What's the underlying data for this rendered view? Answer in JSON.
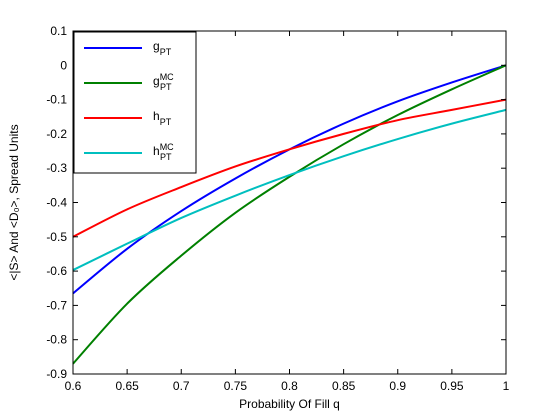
{
  "chart_data": {
    "type": "line",
    "title": "",
    "xlabel": "Probability Of Fill q",
    "ylabel": "<|S> And <D₀>, Spread Units",
    "xlim": [
      0.6,
      1.0
    ],
    "ylim": [
      -0.9,
      0.1
    ],
    "xticks": [
      0.6,
      0.65,
      0.7,
      0.75,
      0.8,
      0.85,
      0.9,
      0.95,
      1.0
    ],
    "xtick_labels": [
      "0.6",
      "0.65",
      "0.7",
      "0.75",
      "0.8",
      "0.85",
      "0.9",
      "0.95",
      "1"
    ],
    "yticks": [
      0.1,
      0,
      -0.1,
      -0.2,
      -0.3,
      -0.4,
      -0.5,
      -0.6,
      -0.7,
      -0.8,
      -0.9
    ],
    "ytick_labels": [
      "0.1",
      "0",
      "-0.1",
      "-0.2",
      "-0.3",
      "-0.4",
      "-0.5",
      "-0.6",
      "-0.7",
      "-0.8",
      "-0.9"
    ],
    "grid": false,
    "legend_position": "top-left",
    "x": [
      0.6,
      0.65,
      0.7,
      0.75,
      0.8,
      0.85,
      0.9,
      0.95,
      1.0
    ],
    "series": [
      {
        "name": "g",
        "name_sub": "PT",
        "name_sup": "",
        "color": "#0000ff",
        "values": [
          -0.665,
          -0.535,
          -0.425,
          -0.33,
          -0.245,
          -0.17,
          -0.105,
          -0.05,
          0.0
        ]
      },
      {
        "name": "g",
        "name_sub": "PT",
        "name_sup": "MC",
        "color": "#008000",
        "values": [
          -0.87,
          -0.695,
          -0.555,
          -0.43,
          -0.325,
          -0.23,
          -0.145,
          -0.07,
          0.0
        ]
      },
      {
        "name": "h",
        "name_sub": "PT",
        "name_sup": "",
        "color": "#ff0000",
        "values": [
          -0.5,
          -0.42,
          -0.355,
          -0.295,
          -0.245,
          -0.2,
          -0.16,
          -0.13,
          -0.1
        ]
      },
      {
        "name": "h",
        "name_sub": "PT",
        "name_sup": "MC",
        "color": "#00bfbf",
        "values": [
          -0.597,
          -0.52,
          -0.445,
          -0.38,
          -0.32,
          -0.265,
          -0.215,
          -0.17,
          -0.13
        ]
      }
    ]
  }
}
